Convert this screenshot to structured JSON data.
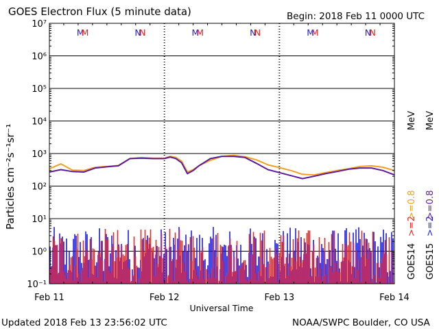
{
  "header": {
    "title": "GOES Electron Flux (5 minute data)",
    "begin": "Begin: 2018 Feb 11 0000 UTC"
  },
  "footer": {
    "updated": "Updated 2018 Feb 13 23:56:02 UTC",
    "credit": "NOAA/SWPC Boulder, CO USA"
  },
  "chart_data": {
    "type": "line",
    "title": "GOES Electron Flux (5 minute data)",
    "xlabel": "Universal Time",
    "ylabel": "Particles cm⁻²s⁻¹sr⁻¹",
    "yscale": "log",
    "ylim": [
      0.1,
      10000000
    ],
    "xlim_days": [
      0,
      3
    ],
    "x_tick_labels": [
      "Feb 11",
      "Feb 12",
      "Feb 13",
      "Feb 14"
    ],
    "y_tick_labels": [
      "10⁻¹",
      "10⁰",
      "10¹",
      "10²",
      "10³",
      "10⁴",
      "10⁵",
      "10⁶",
      "10⁷"
    ],
    "threshold": 1000,
    "markers": {
      "labels": [
        "M",
        "M",
        "N",
        "N"
      ],
      "colors": [
        "#1a1adc",
        "#e02020",
        "#1a1adc",
        "#e02020"
      ]
    },
    "right_labels": {
      "goes14": "GOES14",
      "goes15": "GOES15",
      "ge2_red": ">=2",
      "ge2_blue": ">=2",
      "ge08_orange": ">=0.8",
      "ge08_purple": ">=0.8",
      "mev1": "MeV",
      "mev2": "MeV"
    },
    "series": [
      {
        "name": ">=0.8 MeV GOES14",
        "color": "#f0a020",
        "x": [
          0,
          0.1,
          0.2,
          0.3,
          0.4,
          0.5,
          0.6,
          0.7,
          0.8,
          0.9,
          1.0,
          1.05,
          1.1,
          1.15,
          1.2,
          1.25,
          1.3,
          1.4,
          1.5,
          1.6,
          1.7,
          1.8,
          1.9,
          2.0,
          2.1,
          2.2,
          2.3,
          2.4,
          2.5,
          2.6,
          2.7,
          2.8,
          2.9,
          3.0
        ],
        "values": [
          340,
          480,
          310,
          300,
          380,
          400,
          430,
          700,
          760,
          720,
          720,
          820,
          760,
          580,
          270,
          320,
          420,
          620,
          820,
          880,
          800,
          640,
          450,
          370,
          300,
          230,
          220,
          260,
          300,
          340,
          400,
          420,
          380,
          300
        ]
      },
      {
        "name": ">=0.8 MeV GOES15",
        "color": "#5a1a9a",
        "x": [
          0,
          0.1,
          0.2,
          0.3,
          0.4,
          0.5,
          0.6,
          0.7,
          0.8,
          0.9,
          1.0,
          1.05,
          1.1,
          1.15,
          1.2,
          1.25,
          1.3,
          1.4,
          1.5,
          1.6,
          1.7,
          1.8,
          1.9,
          2.0,
          2.1,
          2.2,
          2.3,
          2.4,
          2.5,
          2.6,
          2.7,
          2.8,
          2.9,
          3.0
        ],
        "values": [
          270,
          320,
          280,
          270,
          360,
          390,
          420,
          700,
          720,
          700,
          700,
          780,
          700,
          520,
          240,
          300,
          420,
          700,
          820,
          820,
          760,
          500,
          320,
          260,
          210,
          170,
          200,
          240,
          280,
          330,
          360,
          360,
          300,
          220
        ]
      },
      {
        "name": ">=2 MeV GOES14",
        "color": "#ff1a1a",
        "note": "noisy values between 0.1 and ~5"
      },
      {
        "name": ">=2 MeV GOES15",
        "color": "#1a1add",
        "note": "noisy values between 0.1 and ~5"
      }
    ]
  }
}
